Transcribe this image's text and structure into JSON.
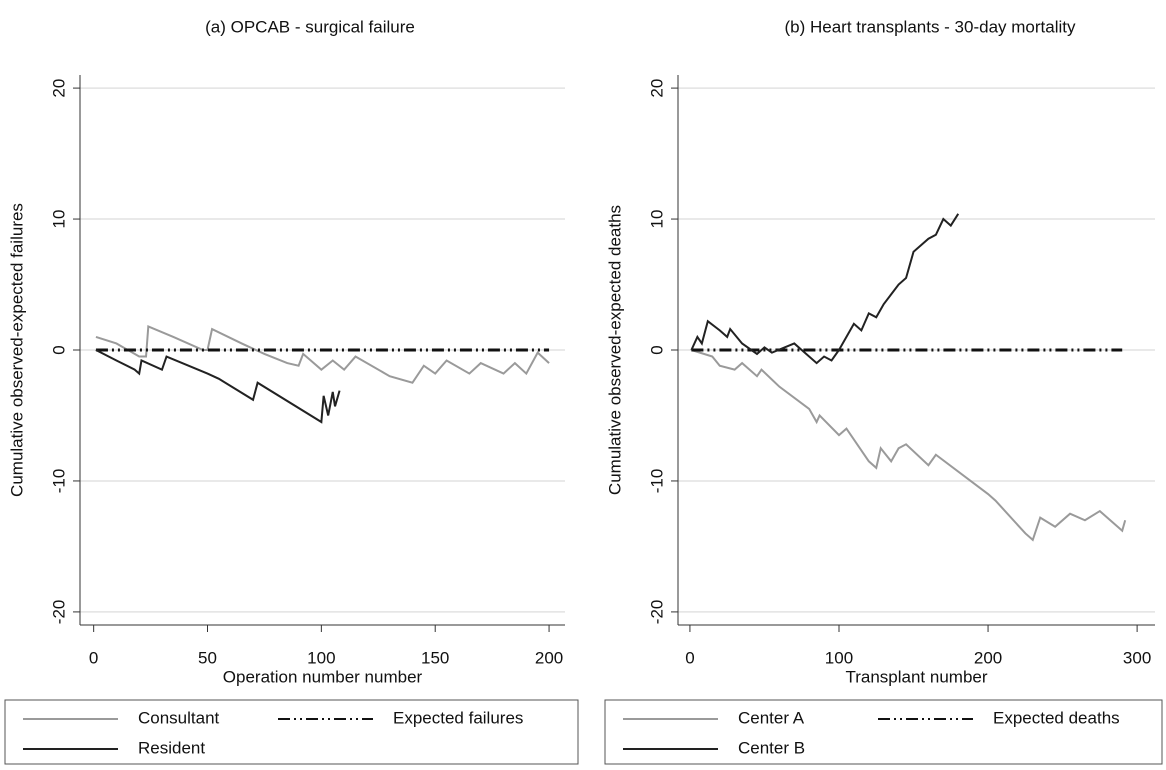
{
  "chart_data": [
    {
      "type": "line",
      "title": "(a)  OPCAB - surgical failure",
      "x_label": "Operation number number",
      "y_label": "Cumulative observed-expected failures",
      "xlim": [
        -6,
        207
      ],
      "ylim": [
        -21,
        21
      ],
      "xticks": [
        0,
        50,
        100,
        150,
        200
      ],
      "yticks": [
        -20,
        -10,
        0,
        10,
        20
      ],
      "grid": true,
      "series": [
        {
          "name": "Consultant",
          "color": "#9a9a9a",
          "style": "solid",
          "x": [
            1,
            10,
            20,
            23,
            24,
            35,
            48,
            50,
            52,
            65,
            75,
            85,
            90,
            92,
            100,
            105,
            110,
            115,
            130,
            140,
            145,
            150,
            155,
            165,
            170,
            180,
            185,
            190,
            195,
            200
          ],
          "values": [
            1,
            0.5,
            -0.5,
            -0.5,
            1.8,
            1,
            0,
            0,
            1.6,
            0.5,
            -0.3,
            -1,
            -1.2,
            -0.3,
            -1.5,
            -0.8,
            -1.5,
            -0.5,
            -2,
            -2.5,
            -1.2,
            -1.8,
            -0.8,
            -1.8,
            -1,
            -1.8,
            -1,
            -1.8,
            -0.2,
            -1
          ]
        },
        {
          "name": "Expected failures",
          "color": "#111111",
          "style": "dashdot",
          "x": [
            1,
            200
          ],
          "values": [
            0,
            0
          ]
        },
        {
          "name": "Resident",
          "color": "#222222",
          "style": "solid",
          "x": [
            1,
            10,
            18,
            20,
            21,
            30,
            32,
            50,
            55,
            70,
            72,
            100,
            101,
            103,
            105,
            106,
            108
          ],
          "values": [
            0,
            -0.8,
            -1.5,
            -1.8,
            -0.8,
            -1.5,
            -0.5,
            -1.8,
            -2.2,
            -3.8,
            -2.5,
            -5.5,
            -3.5,
            -5,
            -3.2,
            -4.3,
            -3.1
          ]
        }
      ]
    },
    {
      "type": "line",
      "title": "(b) Heart transplants - 30-day mortality",
      "x_label": "Transplant number",
      "y_label": "Cumulative observed-expected deaths",
      "xlim": [
        -8,
        312
      ],
      "ylim": [
        -21,
        21
      ],
      "xticks": [
        0,
        100,
        200,
        300
      ],
      "yticks": [
        -20,
        -10,
        0,
        10,
        20
      ],
      "grid": true,
      "series": [
        {
          "name": "Center A",
          "color": "#9a9a9a",
          "style": "solid",
          "x": [
            1,
            15,
            20,
            30,
            35,
            45,
            48,
            60,
            80,
            85,
            87,
            100,
            105,
            120,
            125,
            128,
            135,
            140,
            145,
            160,
            165,
            200,
            205,
            225,
            230,
            235,
            245,
            255,
            265,
            275,
            290,
            292
          ],
          "values": [
            0,
            -0.5,
            -1.2,
            -1.5,
            -1,
            -2,
            -1.5,
            -2.8,
            -4.5,
            -5.5,
            -5,
            -6.5,
            -6,
            -8.5,
            -9,
            -7.5,
            -8.5,
            -7.5,
            -7.2,
            -8.8,
            -8,
            -11,
            -11.5,
            -14,
            -14.5,
            -12.8,
            -13.5,
            -12.5,
            -13,
            -12.3,
            -13.8,
            -13
          ]
        },
        {
          "name": "Expected deaths",
          "color": "#111111",
          "style": "dashdot",
          "x": [
            1,
            290
          ],
          "values": [
            0,
            0
          ]
        },
        {
          "name": "Center B",
          "color": "#222222",
          "style": "solid",
          "x": [
            1,
            5,
            8,
            12,
            20,
            25,
            27,
            35,
            45,
            50,
            55,
            70,
            75,
            85,
            90,
            95,
            100,
            105,
            110,
            115,
            120,
            125,
            130,
            140,
            145,
            150,
            160,
            165,
            170,
            175,
            180
          ],
          "values": [
            0,
            1,
            0.5,
            2.2,
            1.5,
            1,
            1.6,
            0.5,
            -0.3,
            0.2,
            -0.2,
            0.5,
            0,
            -1,
            -0.5,
            -0.8,
            0,
            1,
            2,
            1.5,
            2.8,
            2.5,
            3.5,
            5,
            5.5,
            7.5,
            8.5,
            8.8,
            10,
            9.5,
            10.4
          ]
        }
      ]
    }
  ]
}
